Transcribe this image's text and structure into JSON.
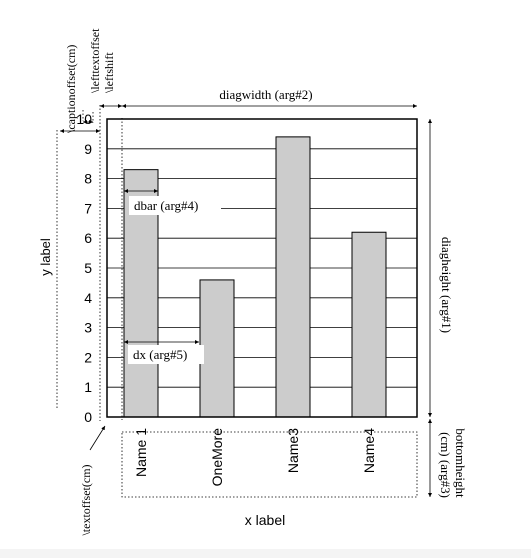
{
  "chart_data": {
    "type": "bar",
    "categories": [
      "Name 1",
      "OneMore",
      "Name3",
      "Name4"
    ],
    "values": [
      8.3,
      4.6,
      9.4,
      6.2
    ],
    "ylim": [
      0,
      10
    ],
    "yticks": [
      0,
      1,
      2,
      3,
      4,
      5,
      6,
      7,
      8,
      9,
      10
    ],
    "xlabel": "x label",
    "ylabel": "y label",
    "grid": "horizontal",
    "bar_color": "#cccccc"
  },
  "annotations": {
    "captionoffset": "\\captionoffset(cm)",
    "lefttextoffset": "\\lefttextoffset",
    "leftshift": "\\leftshift",
    "diagwidth": "diagwidth (arg#2)",
    "diagheight": "diagheight (arg#1)",
    "bottomheight_line1": "bottomheight",
    "bottomheight_line2": "(cm) (arg#3)",
    "textoffset": "\\textoffset(cm)",
    "dbar": "dbar (arg#4)",
    "dx": "dx (arg#5)"
  }
}
